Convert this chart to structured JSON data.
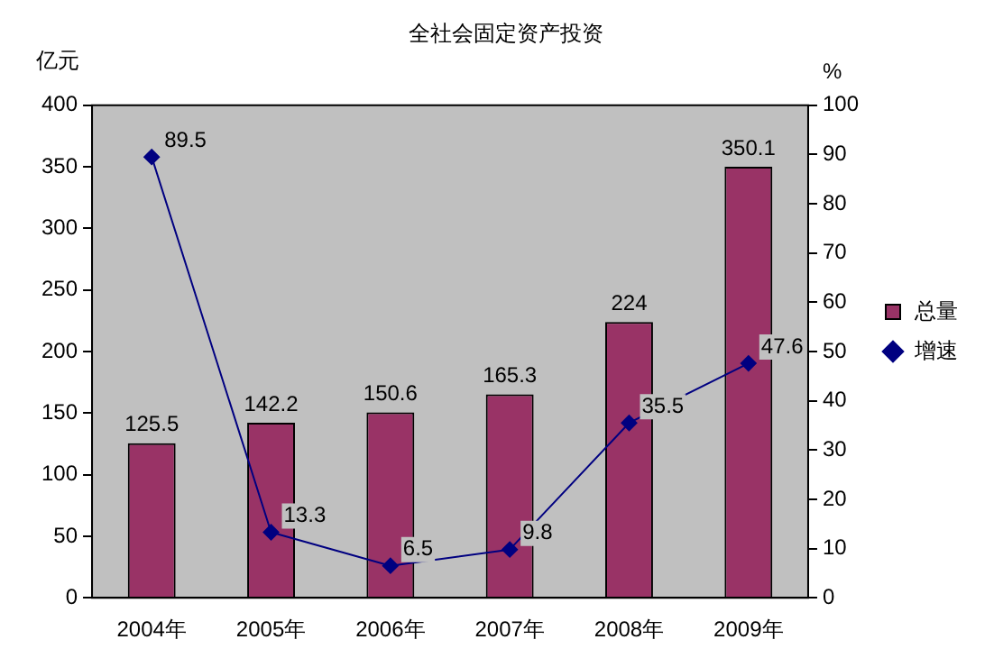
{
  "chart_data": {
    "type": "bar",
    "title": "全社会固定资产投资",
    "ylabel": "亿元",
    "y2label": "%",
    "categories": [
      "2004年",
      "2005年",
      "2006年",
      "2007年",
      "2008年",
      "2009年"
    ],
    "series": [
      {
        "name": "总量",
        "color": "#993366",
        "values": [
          125.5,
          142.2,
          150.6,
          165.3,
          224,
          350.1
        ]
      },
      {
        "name": "增速",
        "type": "line",
        "axis": "y2",
        "color": "#000080",
        "marker": "diamond",
        "line_style": "solid",
        "values": [
          89.5,
          13.3,
          6.5,
          9.8,
          35.5,
          47.6
        ]
      }
    ],
    "ylim": [
      0,
      400
    ],
    "yticks": [
      0,
      50,
      100,
      150,
      200,
      250,
      300,
      350,
      400
    ],
    "y2lim": [
      0,
      100
    ],
    "y2ticks": [
      0,
      10,
      20,
      30,
      40,
      50,
      60,
      70,
      80,
      90,
      100
    ],
    "grid": false,
    "legend": "right",
    "data_labels": true
  }
}
